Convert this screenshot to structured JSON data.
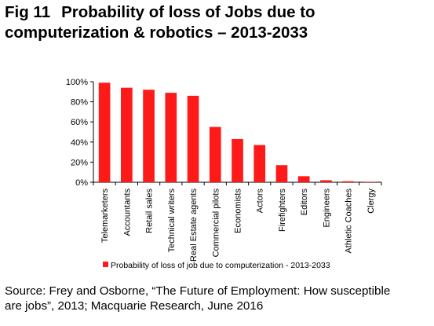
{
  "figure": {
    "number": "Fig 11",
    "title_line1": "Probability of loss of Jobs due to",
    "title_line2": "computerization & robotics – 2013-2033"
  },
  "source": {
    "line1": "Source: Frey and Osborne, “The Future of Employment: How susceptible",
    "line2": "are jobs”, 2013; Macquarie Research, June 2016"
  },
  "colors": {
    "bar": "#ff1a1a",
    "axis": "#000000"
  },
  "chart_data": {
    "type": "bar",
    "title": "",
    "xlabel": "",
    "ylabel": "",
    "categories": [
      "Telemarketers",
      "Accountants",
      "Retail sales",
      "Technical writers",
      "Real Estate agents",
      "Commercial pilots",
      "Economists",
      "Actors",
      "Firefighters",
      "Editors",
      "Engineers",
      "Athletic Coaches",
      "Clergy"
    ],
    "series": [
      {
        "name": "Probability of loss of job due to computerization - 2013-2033",
        "values": [
          99,
          94,
          92,
          89,
          86,
          55,
          43,
          37,
          17,
          6,
          2,
          1,
          0.5
        ]
      }
    ],
    "ylim": [
      0,
      100
    ],
    "yticks": [
      0,
      20,
      40,
      60,
      80,
      100
    ],
    "ytick_labels": [
      "0%",
      "20%",
      "40%",
      "60%",
      "80%",
      "100%"
    ],
    "grid": false,
    "legend_position": "bottom"
  }
}
